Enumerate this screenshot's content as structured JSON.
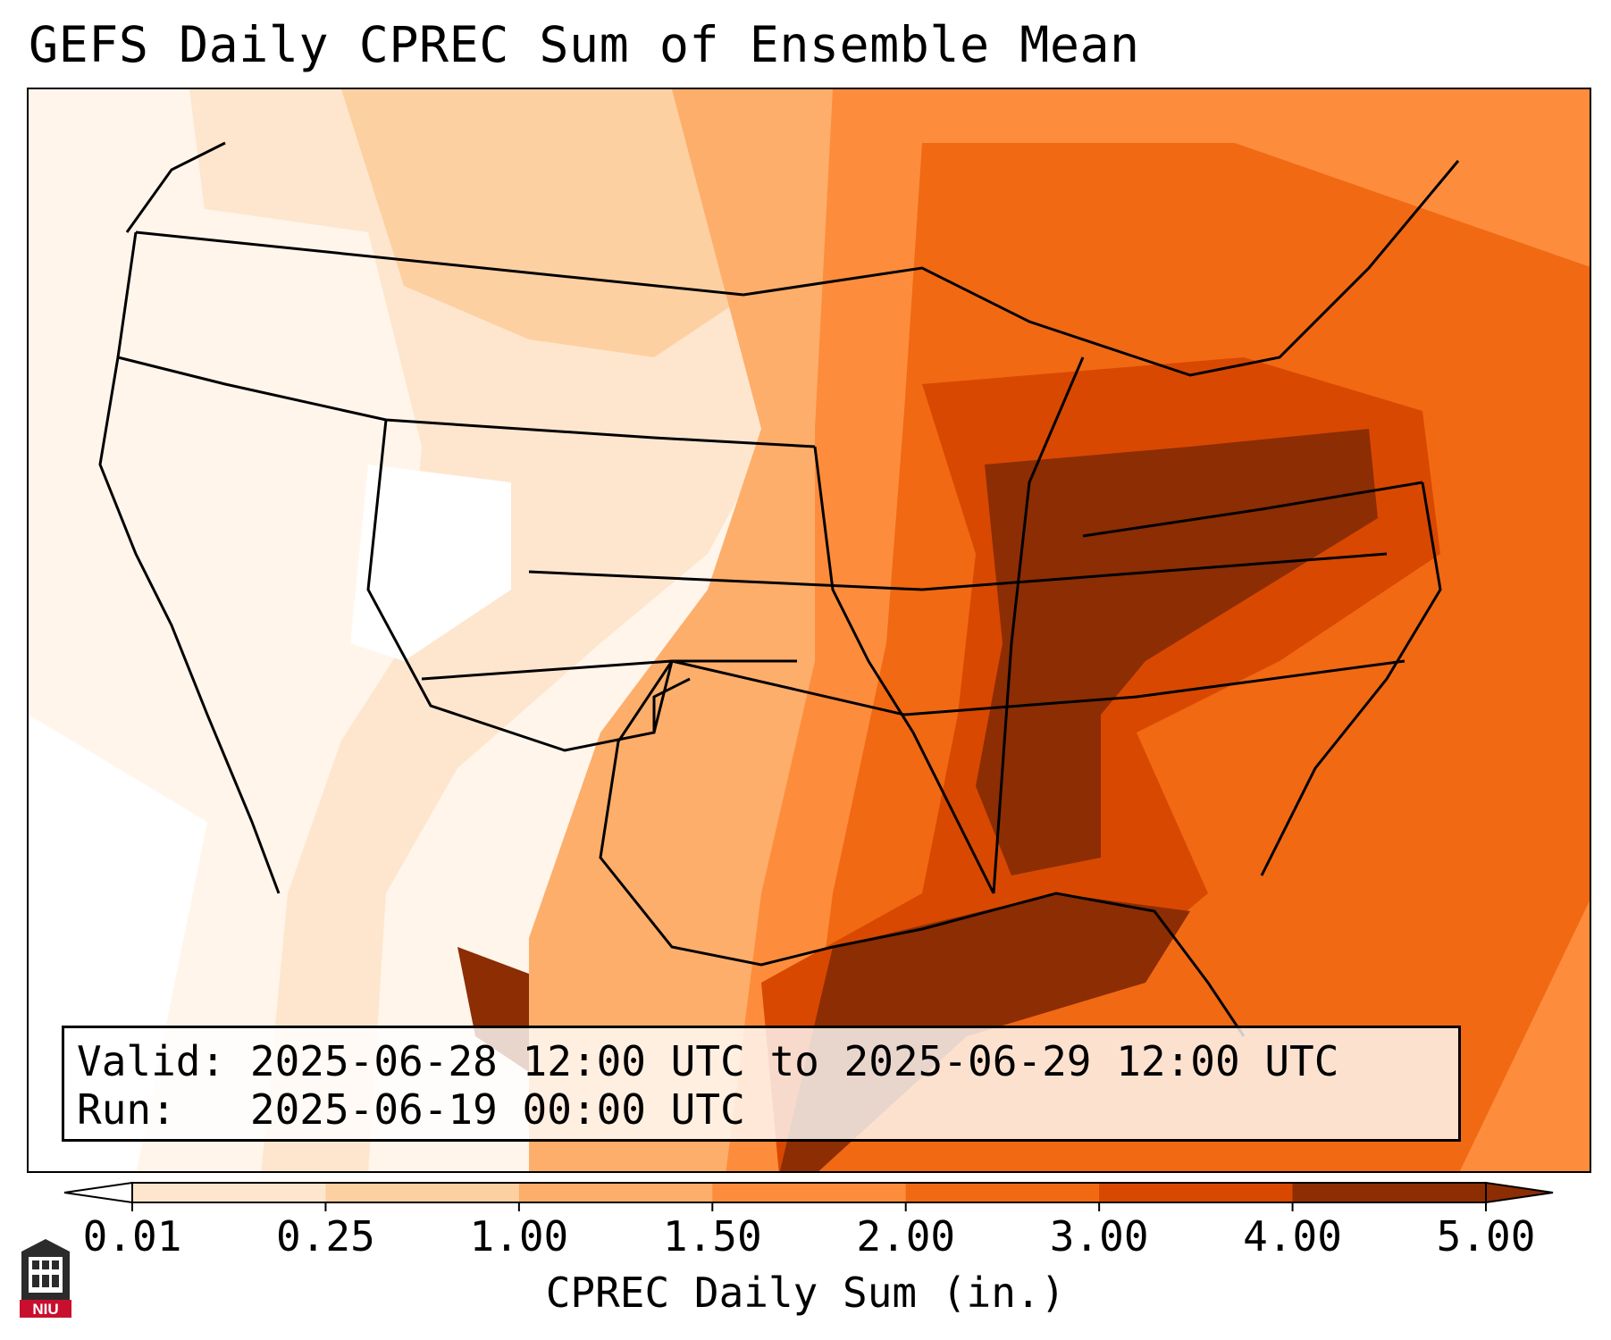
{
  "title": "GEFS Daily CPREC Sum of Ensemble Mean",
  "info": {
    "valid_label": "Valid:",
    "valid_text": "2025-06-28 12:00 UTC to 2025-06-29 12:00 UTC",
    "run_label": "Run:",
    "run_text": "2025-06-19 00:00 UTC"
  },
  "colorbar": {
    "label": "CPREC Daily Sum (in.)",
    "ticks": [
      "0.01",
      "0.25",
      "1.00",
      "1.50",
      "2.00",
      "3.00",
      "4.00",
      "5.00"
    ],
    "colors": [
      "#fff5eb",
      "#fee6ce",
      "#fdd0a2",
      "#fdae6b",
      "#fd8d3c",
      "#f16913",
      "#d94801",
      "#8c2d04"
    ],
    "under_color": "#ffffff",
    "over_color": "#8c2d04"
  },
  "logo": {
    "text": "NIU",
    "color": "#c8102e"
  }
}
